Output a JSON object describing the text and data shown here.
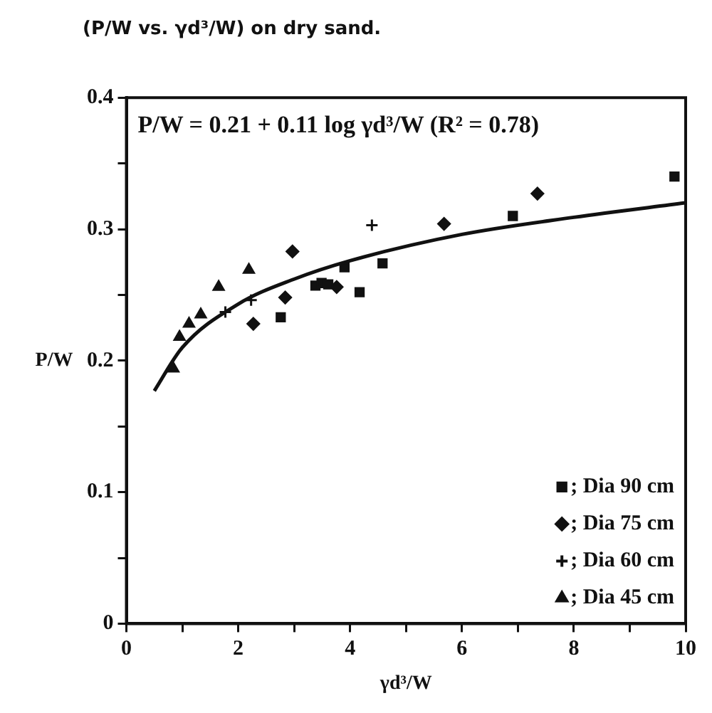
{
  "chart_data": {
    "type": "scatter",
    "title": "(P/W vs. γd³/W) on dry sand.",
    "xlabel": "γd³/W",
    "ylabel": "P/W",
    "annotations": [
      "P/W = 0.21 + 0.11 log γd³/W (R² = 0.78)"
    ],
    "xlim": [
      0,
      10
    ],
    "xticks": [
      0,
      {
        "value": 1,
        "label": null
      },
      2,
      {
        "value": 3,
        "label": null
      },
      4,
      {
        "value": 5,
        "label": null
      },
      6,
      {
        "value": 7,
        "label": null
      },
      8,
      {
        "value": 9,
        "label": null
      },
      10
    ],
    "ylim": [
      0,
      0.4
    ],
    "yticks": [
      0,
      {
        "value": 0.05,
        "label": null
      },
      0.1,
      {
        "value": 0.15,
        "label": null
      },
      0.2,
      {
        "value": 0.25,
        "label": null
      },
      0.3,
      {
        "value": 0.35,
        "label": null
      },
      0.4
    ],
    "grid": false,
    "legend": "bottom right",
    "series": [
      {
        "name": "; Dia 90 cm",
        "color": "#111111",
        "marker": "square",
        "x": [
          2.76,
          3.38,
          3.49,
          3.61,
          3.9,
          4.17,
          4.58,
          6.91,
          9.8
        ],
        "values": [
          0.233,
          0.257,
          0.259,
          0.258,
          0.271,
          0.252,
          0.274,
          0.31,
          0.34
        ]
      },
      {
        "name": "; Dia 75 cm",
        "color": "#111111",
        "marker": "diamond",
        "x": [
          2.27,
          2.84,
          2.97,
          3.76,
          5.68,
          7.35
        ],
        "values": [
          0.228,
          0.248,
          0.283,
          0.256,
          0.304,
          0.327
        ]
      },
      {
        "name": "; Dia 60 cm",
        "color": "#111111",
        "marker": "cross",
        "x": [
          1.77,
          2.23,
          4.39
        ],
        "values": [
          0.237,
          0.246,
          0.303
        ]
      },
      {
        "name": "; Dia 45 cm",
        "color": "#111111",
        "marker": "triangle",
        "x": [
          0.84,
          0.95,
          1.12,
          1.33,
          1.65,
          2.19
        ],
        "values": [
          0.194,
          0.218,
          0.228,
          0.235,
          0.256,
          0.269
        ]
      },
      {
        "type": "line",
        "color": "#111111",
        "marker": "none",
        "x": [
          0.5,
          1,
          2,
          3,
          4,
          6,
          8,
          10
        ],
        "values": [
          0.177,
          0.21,
          0.243,
          0.262,
          0.276,
          0.296,
          0.309,
          0.32
        ]
      }
    ]
  }
}
